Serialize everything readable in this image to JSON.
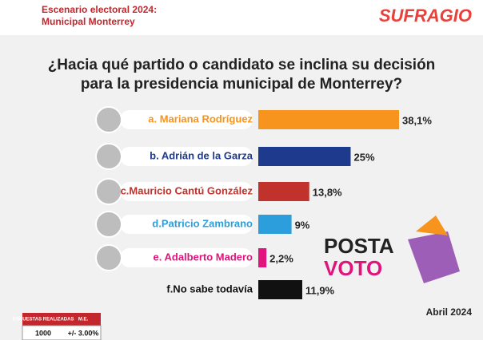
{
  "header": {
    "line1": "Escenario electoral 2024:",
    "line2": "Municipal Monterrey",
    "brand": "SUFRAGIO"
  },
  "chart_data": {
    "type": "bar",
    "orientation": "horizontal",
    "title": [
      "¿Hacia qué partido o candidato se inclina su decisión",
      "para la presidencia municipal de Monterrey?"
    ],
    "categories": [
      "a. Mariana Rodríguez",
      "b. Adrián de la Garza",
      "c.Mauricio Cantú González",
      "d.Patricio Zambrano",
      "e. Adalberto Madero",
      "f.No sabe todavía"
    ],
    "values": [
      38.1,
      25,
      13.8,
      9,
      2.2,
      11.9
    ],
    "value_labels": [
      "38,1%",
      "25%",
      "13,8%",
      "9%",
      "2,2%",
      "11,9%"
    ],
    "colors": [
      "#f7941d",
      "#1d3a8c",
      "#c0322b",
      "#2c9edb",
      "#e0147c",
      "#111111"
    ],
    "label_colors": [
      "#f7941d",
      "#1d3a8c",
      "#c0322b",
      "#2c9edb",
      "#e0147c",
      "#111111"
    ]
  },
  "footer": {
    "date": "Abril 2024",
    "table_header": [
      "ENCUESTAS REALIZADAS",
      "M.E."
    ],
    "table_row": [
      "1000",
      "+/- 3.00%"
    ],
    "logo": [
      "POSTA",
      "VOTO"
    ]
  }
}
